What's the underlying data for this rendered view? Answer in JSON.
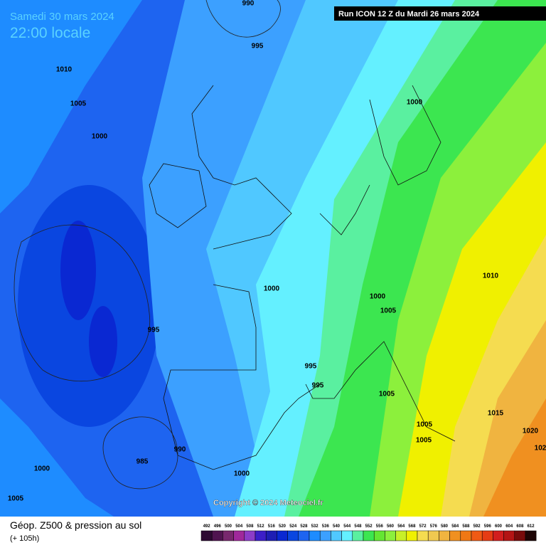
{
  "header": {
    "date": "Samedi 30 mars 2024",
    "time": "22:00 locale",
    "run": "Run ICON 12 Z du Mardi 26 mars 2024"
  },
  "isobars": [
    990,
    995,
    1010,
    1005,
    1000,
    1000,
    1000,
    995,
    1000,
    1005,
    1010,
    995,
    995,
    1005,
    1005,
    1005,
    1015,
    1020,
    102,
    985,
    990,
    1000,
    1000,
    1005
  ],
  "copyright": "Copyright © 2024 Meteociel.fr",
  "footer": {
    "title": "Géop. Z500 & pression au sol",
    "lead": "(+ 105h)"
  },
  "legend": {
    "labels": [
      492,
      496,
      500,
      504,
      508,
      512,
      516,
      520,
      524,
      528,
      532,
      536,
      540,
      544,
      548,
      552,
      556,
      560,
      564,
      568,
      572,
      576,
      580,
      584,
      588,
      592,
      596,
      600,
      604,
      608,
      612
    ],
    "colors": [
      "#2d0a32",
      "#501450",
      "#78286e",
      "#a0289b",
      "#8c3cc8",
      "#3c1ec8",
      "#1e1eb4",
      "#0a28d2",
      "#0a46e0",
      "#1e64f0",
      "#1e8cff",
      "#3ca0ff",
      "#50c8ff",
      "#64f0ff",
      "#5af0a0",
      "#3ce650",
      "#64e632",
      "#8cf03c",
      "#c8f028",
      "#f0f000",
      "#f5dc50",
      "#f0c850",
      "#f0b440",
      "#f09020",
      "#f07814",
      "#f05a14",
      "#e63c14",
      "#d21e1e",
      "#b41414",
      "#780a0a",
      "#1e0505"
    ]
  }
}
